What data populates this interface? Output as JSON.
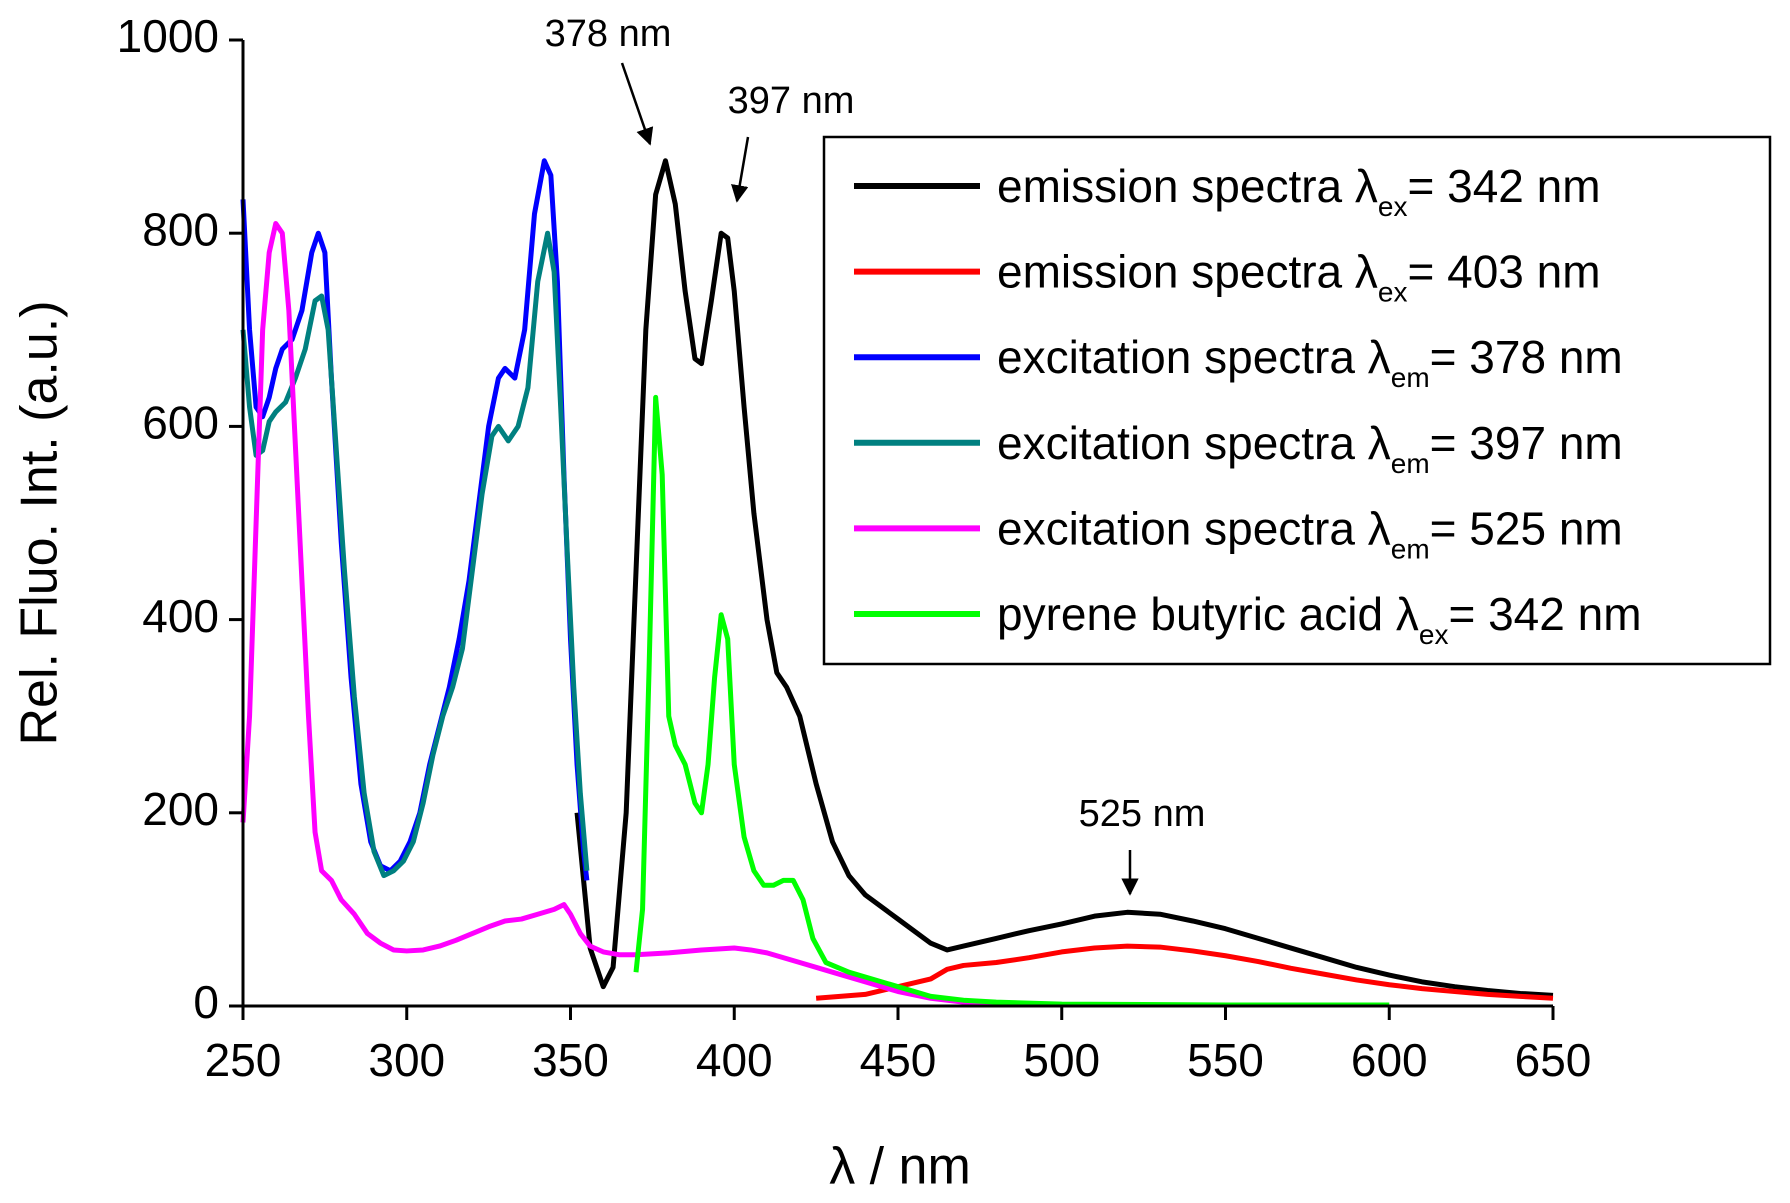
{
  "chart_data": {
    "type": "line",
    "y_label": "Rel. Fluo. Int. (a.u.)",
    "x_label": "λ / nm",
    "xlim": [
      250,
      650
    ],
    "xticks": [
      250,
      300,
      350,
      400,
      450,
      500,
      550,
      600,
      650
    ],
    "ylim": [
      0,
      1000
    ],
    "yticks": [
      0,
      200,
      400,
      600,
      800,
      1000
    ],
    "annotations": [
      "378 nm",
      "397 nm",
      "525 nm"
    ],
    "series": [
      {
        "name": "emission spectra λ",
        "name_sub": "ex",
        "name_tail": "= 342 nm",
        "color": "#000000",
        "x": [
          352,
          356,
          360,
          363,
          367,
          370,
          373,
          376,
          379,
          382,
          385,
          388,
          390,
          393,
          396,
          398,
          400,
          403,
          406,
          410,
          413,
          416,
          420,
          425,
          430,
          435,
          440,
          450,
          460,
          465,
          470,
          480,
          490,
          500,
          510,
          520,
          530,
          540,
          550,
          560,
          570,
          580,
          590,
          600,
          610,
          620,
          630,
          640,
          650
        ],
        "values": [
          200,
          60,
          20,
          40,
          200,
          450,
          700,
          840,
          875,
          830,
          740,
          670,
          665,
          730,
          800,
          795,
          740,
          620,
          510,
          400,
          345,
          330,
          300,
          230,
          170,
          135,
          115,
          90,
          65,
          58,
          62,
          70,
          78,
          85,
          93,
          97,
          95,
          88,
          80,
          70,
          60,
          50,
          40,
          32,
          25,
          20,
          16,
          13,
          11
        ]
      },
      {
        "name": "emission spectra λ",
        "name_sub": "ex",
        "name_tail": "= 403 nm",
        "color": "#ff0000",
        "x": [
          425,
          440,
          450,
          460,
          465,
          470,
          480,
          490,
          500,
          510,
          520,
          530,
          540,
          550,
          560,
          570,
          580,
          590,
          600,
          610,
          620,
          630,
          640,
          650
        ],
        "values": [
          8,
          12,
          20,
          28,
          38,
          42,
          45,
          50,
          56,
          60,
          62,
          61,
          57,
          52,
          46,
          39,
          33,
          27,
          22,
          18,
          15,
          12,
          10,
          8
        ]
      },
      {
        "name": "excitation spectra λ",
        "name_sub": "em",
        "name_tail": "= 378 nm",
        "color": "#0000ff",
        "x": [
          250,
          252,
          254,
          256,
          258,
          260,
          262,
          265,
          268,
          271,
          273,
          275,
          277,
          280,
          283,
          286,
          289,
          292,
          295,
          298,
          301,
          304,
          307,
          310,
          313,
          316,
          319,
          322,
          325,
          328,
          330,
          333,
          336,
          339,
          342,
          344,
          346,
          348,
          350,
          352,
          354,
          355
        ],
        "values": [
          835,
          700,
          620,
          610,
          630,
          660,
          680,
          690,
          720,
          780,
          800,
          780,
          650,
          480,
          340,
          230,
          170,
          145,
          140,
          150,
          170,
          200,
          250,
          290,
          330,
          380,
          440,
          520,
          600,
          650,
          660,
          650,
          700,
          820,
          875,
          860,
          750,
          550,
          380,
          250,
          160,
          130
        ]
      },
      {
        "name": "excitation spectra λ",
        "name_sub": "em",
        "name_tail": "= 397 nm",
        "color": "#008080",
        "x": [
          250,
          252,
          254,
          256,
          258,
          260,
          263,
          266,
          269,
          272,
          274,
          276,
          278,
          281,
          284,
          287,
          290,
          293,
          296,
          299,
          302,
          305,
          308,
          311,
          314,
          317,
          320,
          323,
          326,
          328,
          331,
          334,
          337,
          340,
          343,
          345,
          347,
          349,
          351,
          353,
          355
        ],
        "values": [
          700,
          620,
          570,
          575,
          605,
          615,
          625,
          650,
          680,
          730,
          735,
          700,
          600,
          450,
          320,
          220,
          160,
          135,
          140,
          150,
          170,
          210,
          260,
          300,
          330,
          370,
          450,
          530,
          590,
          600,
          585,
          600,
          640,
          750,
          800,
          760,
          620,
          470,
          330,
          220,
          140
        ]
      },
      {
        "name": "excitation spectra λ",
        "name_sub": "em",
        "name_tail": "= 525 nm",
        "color": "#ff00ff",
        "x": [
          250,
          252,
          254,
          256,
          258,
          260,
          262,
          264,
          266,
          268,
          270,
          272,
          274,
          277,
          280,
          284,
          288,
          292,
          296,
          300,
          305,
          310,
          315,
          320,
          325,
          330,
          335,
          340,
          345,
          348,
          350,
          353,
          356,
          360,
          365,
          370,
          380,
          390,
          400,
          405,
          410,
          420,
          430,
          440,
          450,
          460,
          470,
          480,
          500
        ],
        "values": [
          190,
          300,
          500,
          700,
          780,
          810,
          800,
          720,
          580,
          440,
          300,
          180,
          140,
          130,
          110,
          95,
          75,
          65,
          58,
          57,
          58,
          62,
          68,
          75,
          82,
          88,
          90,
          95,
          100,
          105,
          95,
          75,
          62,
          56,
          53,
          53,
          55,
          58,
          60,
          58,
          55,
          45,
          35,
          25,
          15,
          8,
          4,
          2,
          1
        ]
      },
      {
        "name": "pyrene butyric acid λ",
        "name_sub": "ex",
        "name_tail": "= 342 nm",
        "color": "#00ff00",
        "x": [
          370,
          372,
          374,
          376,
          378,
          380,
          382,
          385,
          388,
          390,
          392,
          394,
          396,
          398,
          400,
          403,
          406,
          409,
          412,
          415,
          418,
          421,
          424,
          428,
          435,
          440,
          450,
          460,
          470,
          480,
          500,
          550,
          600
        ],
        "values": [
          35,
          100,
          350,
          630,
          550,
          300,
          270,
          250,
          210,
          200,
          250,
          340,
          405,
          380,
          250,
          175,
          140,
          125,
          125,
          130,
          130,
          110,
          70,
          45,
          35,
          30,
          20,
          10,
          6,
          4,
          2,
          1,
          1
        ]
      }
    ]
  }
}
